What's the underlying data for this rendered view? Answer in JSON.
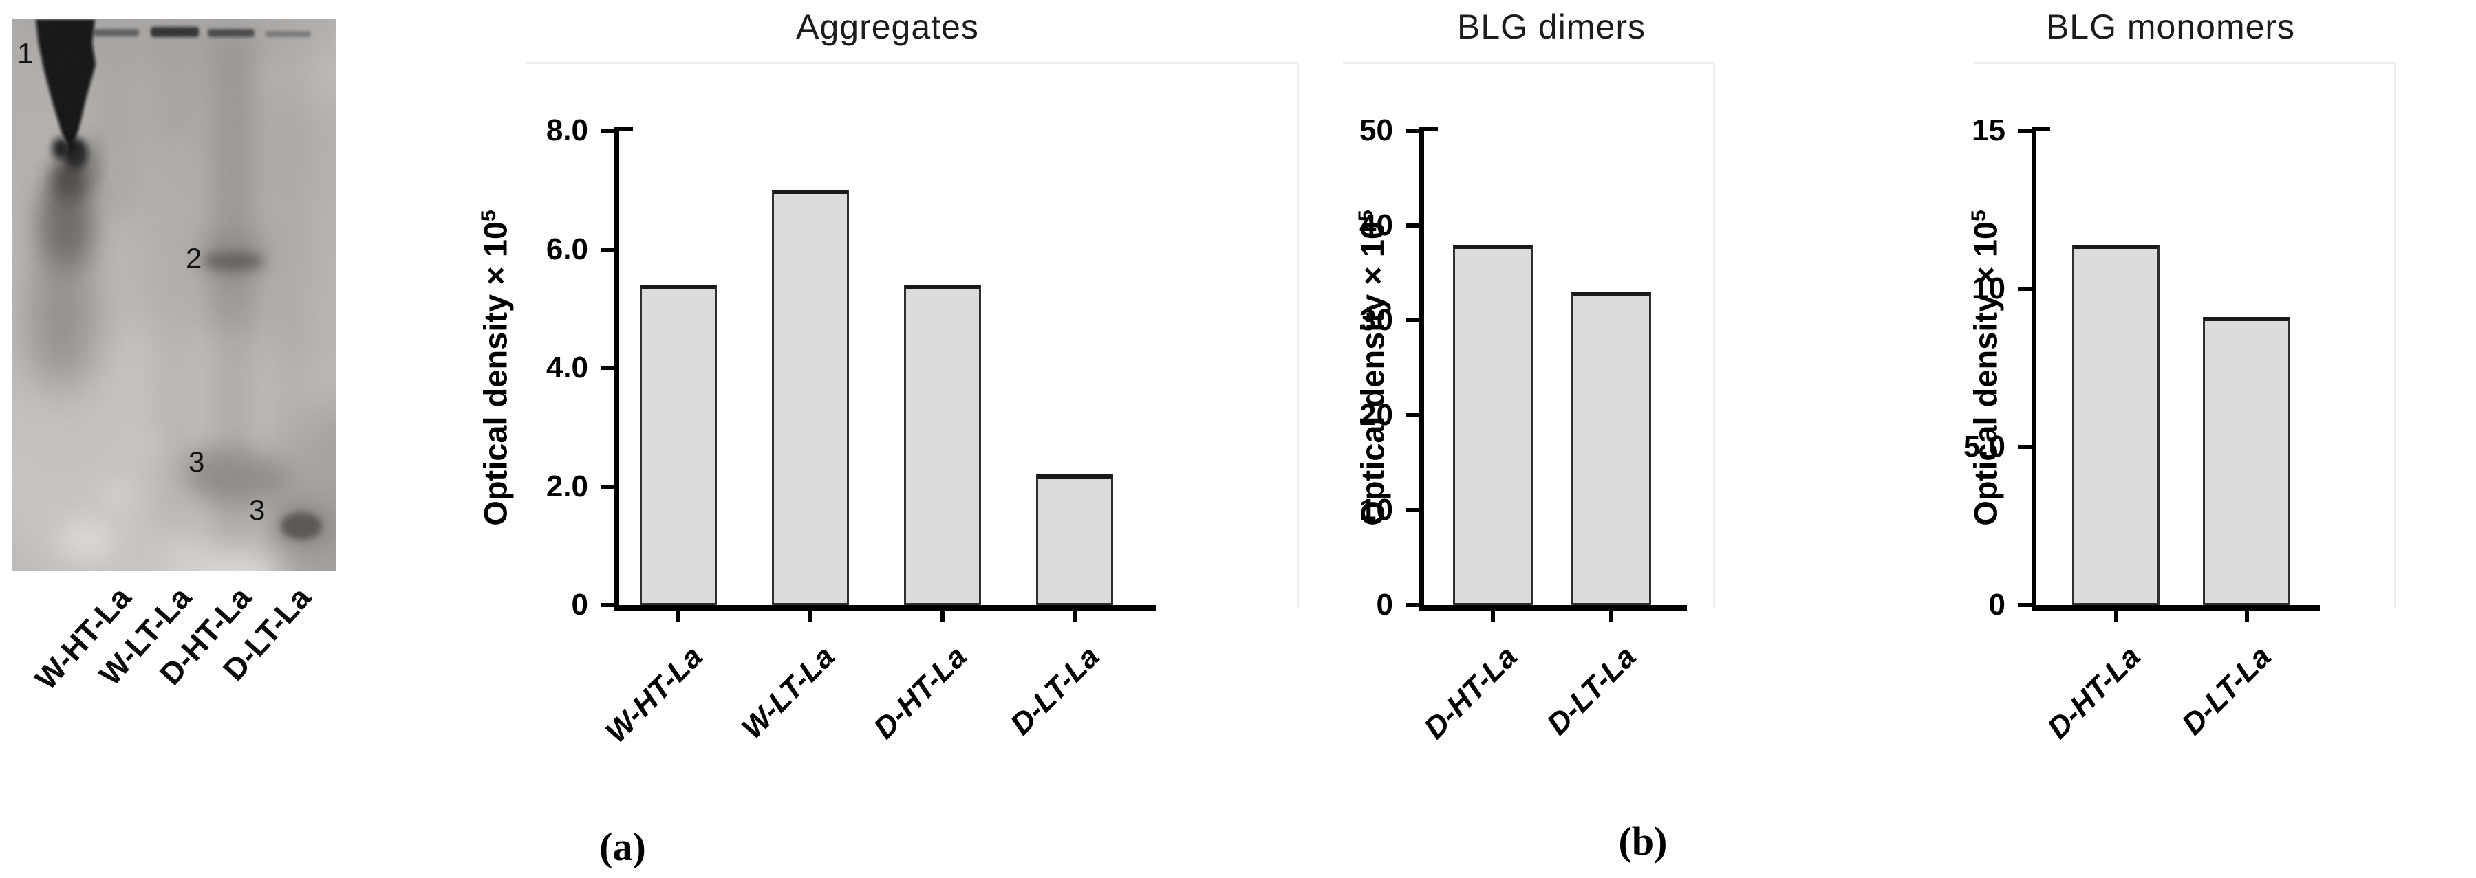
{
  "figure": {
    "panel_a_label": "(a)",
    "panel_b_label": "(b)"
  },
  "gel": {
    "lane_labels": [
      "W-HT-La",
      "W-LT-La",
      "D-HT-La",
      "D-LT-La"
    ],
    "band_annotations": [
      "1",
      "2",
      "3",
      "3"
    ]
  },
  "colors": {
    "bar_fill": "#dcdcdc",
    "bar_edge": "#2f2f2f",
    "bar_top_edge": "#191919",
    "axis": "#000000",
    "background": "#ffffff"
  },
  "chart_data": [
    {
      "type": "bar",
      "title": "Aggregates",
      "ylabel_base": "Optical density × 10",
      "ylabel_exp": "5",
      "xlabel": "",
      "categories": [
        "W-HT-La",
        "W-LT-La",
        "D-HT-La",
        "D-LT-La"
      ],
      "values": [
        5.4,
        7.0,
        5.4,
        2.2
      ],
      "ylim": [
        0,
        8
      ],
      "ytick_labels": [
        "8.0",
        "6.0",
        "4.0",
        "2.0",
        "0"
      ],
      "ytick_values": [
        8,
        6,
        4,
        2,
        0
      ],
      "grid": false,
      "legend": null
    },
    {
      "type": "bar",
      "title": "BLG dimers",
      "ylabel_base": "Optical density × 10",
      "ylabel_exp": "5",
      "xlabel": "",
      "categories": [
        "D-HT-La",
        "D-LT-La"
      ],
      "values": [
        38,
        33
      ],
      "ylim": [
        0,
        50
      ],
      "ytick_labels": [
        "50",
        "40",
        "30",
        "20",
        "10",
        "0"
      ],
      "ytick_values": [
        50,
        40,
        30,
        20,
        10,
        0
      ],
      "grid": false,
      "legend": null
    },
    {
      "type": "bar",
      "title": "BLG monomers",
      "ylabel_base": "Optical density × 10",
      "ylabel_exp": "5",
      "xlabel": "",
      "categories": [
        "D-HT-La",
        "D-LT-La"
      ],
      "values": [
        11.4,
        9.1
      ],
      "ylim": [
        0,
        15
      ],
      "ytick_labels": [
        "15",
        "10",
        "5.0",
        "0"
      ],
      "ytick_values": [
        15,
        10,
        5,
        0
      ],
      "grid": false,
      "legend": null
    }
  ]
}
